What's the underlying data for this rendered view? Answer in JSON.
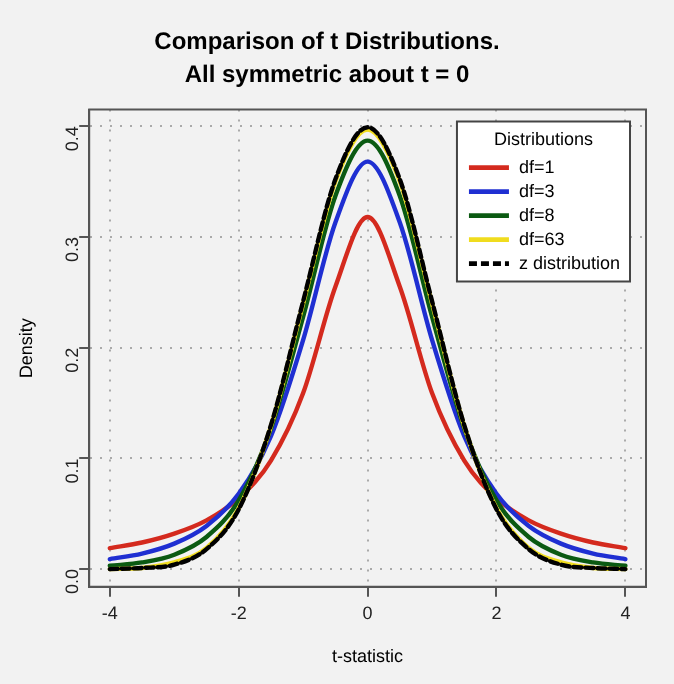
{
  "chart_data": {
    "type": "line",
    "title": "Comparison of t Distributions.",
    "subtitle": "All symmetric about t = 0",
    "xlabel": "t-statistic",
    "ylabel": "Density",
    "legend_title": "Distributions",
    "x": [
      -4,
      -3.5,
      -3,
      -2.5,
      -2,
      -1.5,
      -1,
      -0.5,
      0,
      0.5,
      1,
      1.5,
      2,
      2.5,
      3,
      3.5,
      4
    ],
    "series": [
      {
        "name": "df=1",
        "color": "#d42a1e",
        "values": [
          0.019,
          0.024,
          0.032,
          0.044,
          0.064,
          0.098,
          0.159,
          0.255,
          0.318,
          0.255,
          0.159,
          0.098,
          0.064,
          0.044,
          0.032,
          0.024,
          0.019
        ]
      },
      {
        "name": "df=3",
        "color": "#1f2fd2",
        "values": [
          0.009,
          0.014,
          0.023,
          0.039,
          0.068,
          0.12,
          0.207,
          0.313,
          0.368,
          0.313,
          0.207,
          0.12,
          0.068,
          0.039,
          0.023,
          0.014,
          0.009
        ]
      },
      {
        "name": "df=8",
        "color": "#0b5a12",
        "values": [
          0.003,
          0.006,
          0.013,
          0.029,
          0.062,
          0.127,
          0.228,
          0.337,
          0.387,
          0.337,
          0.228,
          0.127,
          0.062,
          0.029,
          0.013,
          0.006,
          0.003
        ]
      },
      {
        "name": "df=63",
        "color": "#f0dc1e",
        "values": [
          0.0,
          0.001,
          0.006,
          0.019,
          0.055,
          0.129,
          0.24,
          0.35,
          0.397,
          0.35,
          0.24,
          0.129,
          0.055,
          0.019,
          0.006,
          0.001,
          0.0
        ]
      },
      {
        "name": "z distribution",
        "color": "#000000",
        "line_style": "dashed",
        "values": [
          0.0,
          0.001,
          0.004,
          0.018,
          0.054,
          0.13,
          0.242,
          0.352,
          0.399,
          0.352,
          0.242,
          0.13,
          0.054,
          0.018,
          0.004,
          0.001,
          0.0
        ]
      }
    ],
    "xlim": [
      -4.32,
      4.32
    ],
    "xticks": [
      -4,
      -2,
      0,
      2,
      4
    ],
    "ylim": [
      -0.016,
      0.415
    ],
    "yticks": [
      {
        "value": 0,
        "label": "0.0"
      },
      {
        "value": 0.1,
        "label": "0.1"
      },
      {
        "value": 0.2,
        "label": "0.2"
      },
      {
        "value": 0.3,
        "label": "0.3"
      },
      {
        "value": 0.4,
        "label": "0.4"
      }
    ],
    "grid": true,
    "legend": "top right",
    "marker": "none",
    "line_style": "solid"
  }
}
